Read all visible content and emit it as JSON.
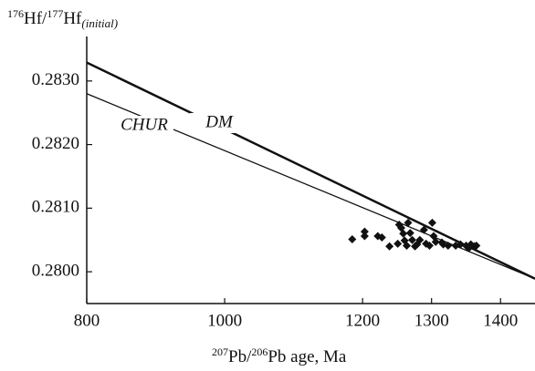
{
  "chart_data": {
    "type": "scatter",
    "ylabel": [
      "176",
      "Hf/",
      "177",
      "Hf",
      "(initial)"
    ],
    "xlabel": [
      "207",
      "Pb/",
      "206",
      "Pb age, Ma"
    ],
    "xlim": [
      800,
      1450
    ],
    "ylim": [
      0.2795,
      0.2837
    ],
    "xticks": [
      800,
      1000,
      1200,
      1300,
      1400
    ],
    "yticks": [
      {
        "value": 0.28,
        "label": "0.2800"
      },
      {
        "value": 0.281,
        "label": "0.2810"
      },
      {
        "value": 0.282,
        "label": "0.2820"
      },
      {
        "value": 0.283,
        "label": "0.2830"
      }
    ],
    "lines": [
      {
        "name": "DM",
        "x": [
          800,
          1450
        ],
        "values": [
          0.28329,
          0.27989
        ],
        "width": 2.5
      },
      {
        "name": "CHUR",
        "x": [
          800,
          1450
        ],
        "values": [
          0.2828,
          0.27989
        ],
        "width": 1.3
      }
    ],
    "series": [
      {
        "color": "#111111",
        "x": [
          1185,
          1203,
          1203,
          1222,
          1228,
          1239,
          1253,
          1256,
          1259,
          1251,
          1261,
          1266,
          1269,
          1264,
          1272,
          1279,
          1283,
          1276,
          1289,
          1292,
          1301,
          1303,
          1306,
          1297,
          1315,
          1317,
          1324,
          1335,
          1342,
          1350,
          1357,
          1362,
          1354,
          1365
        ],
        "values": [
          0.28051,
          0.28063,
          0.28056,
          0.28056,
          0.28054,
          0.2804,
          0.28074,
          0.28069,
          0.2806,
          0.28044,
          0.28049,
          0.28077,
          0.28061,
          0.28041,
          0.2805,
          0.28043,
          0.2805,
          0.2804,
          0.28066,
          0.28044,
          0.28077,
          0.28056,
          0.28047,
          0.28041,
          0.28046,
          0.28043,
          0.28041,
          0.28041,
          0.28043,
          0.28041,
          0.28043,
          0.2804,
          0.28037,
          0.28041
        ]
      }
    ]
  }
}
